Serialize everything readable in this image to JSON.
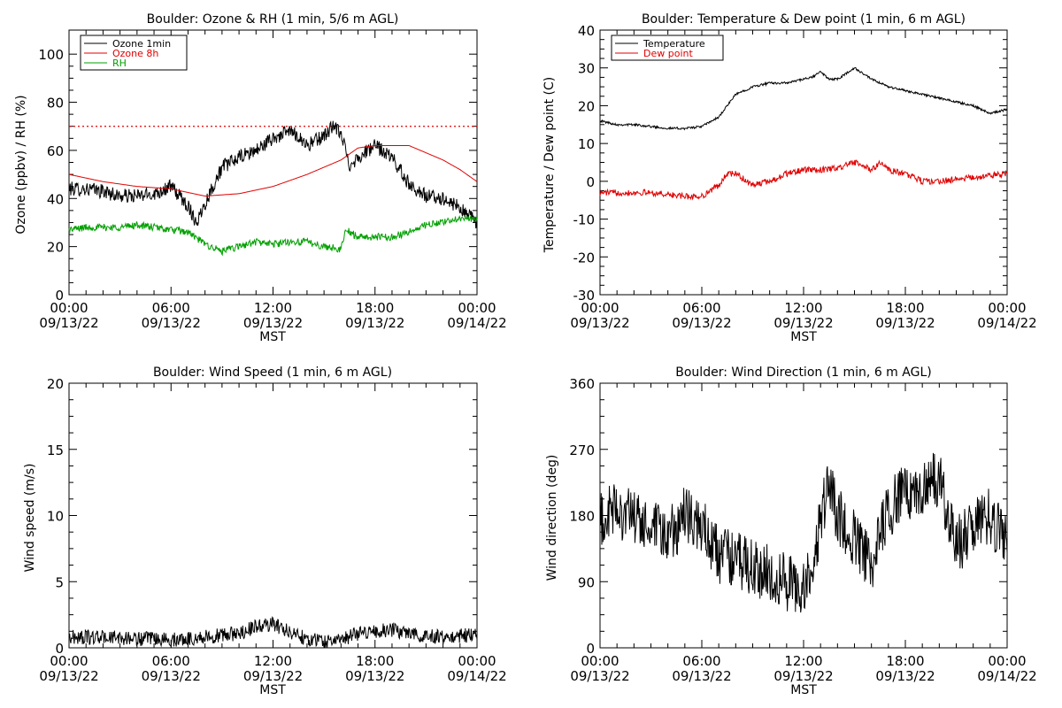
{
  "chart_data": [
    {
      "type": "line",
      "title": "Boulder: Ozone & RH (1 min, 5/6 m AGL)",
      "xlabel": "MST",
      "ylabel": "Ozone (ppbv) / RH (%)",
      "xlim": [
        0,
        24
      ],
      "ylim": [
        0,
        110
      ],
      "yticks": [
        0,
        20,
        40,
        60,
        80,
        100
      ],
      "xticks": [
        {
          "x": 0,
          "time": "00:00",
          "date": "09/13/22"
        },
        {
          "x": 6,
          "time": "06:00",
          "date": "09/13/22"
        },
        {
          "x": 12,
          "time": "12:00",
          "date": "09/13/22"
        },
        {
          "x": 18,
          "time": "18:00",
          "date": "09/13/22"
        },
        {
          "x": 24,
          "time": "00:00",
          "date": "09/14/22"
        }
      ],
      "legend_position": "top-left",
      "reference_lines": [
        {
          "y": 70,
          "color": "#e00000",
          "style": "dotted"
        }
      ],
      "series": [
        {
          "name": "Ozone 1min",
          "color": "#000000",
          "noise": 3,
          "x": [
            0,
            1,
            2,
            3,
            4,
            5,
            6,
            7,
            7.5,
            8,
            9,
            10,
            11,
            12,
            13,
            13.5,
            14,
            15,
            15.5,
            16,
            16.5,
            17,
            18,
            19,
            20,
            21,
            22,
            23,
            24
          ],
          "y": [
            44,
            44,
            43,
            41,
            41,
            42,
            45,
            37,
            30,
            38,
            53,
            57,
            60,
            65,
            68,
            66,
            62,
            66,
            70,
            67,
            54,
            57,
            62,
            57,
            46,
            41,
            40,
            36,
            30
          ]
        },
        {
          "name": "Ozone 8h",
          "color": "#e00000",
          "noise": 0,
          "x": [
            0,
            2,
            4,
            6,
            8,
            10,
            12,
            14,
            16,
            17,
            18,
            19,
            20,
            21,
            22,
            23,
            24
          ],
          "y": [
            50,
            47,
            45,
            44,
            41,
            42,
            45,
            50,
            56,
            61,
            62,
            62,
            62,
            59,
            56,
            52,
            47
          ]
        },
        {
          "name": "RH",
          "color": "#00a000",
          "noise": 1.5,
          "x": [
            0,
            1,
            2,
            3,
            4,
            5,
            6,
            7,
            8,
            9,
            10,
            11,
            12,
            13,
            14,
            15,
            16,
            16.3,
            17,
            18,
            19,
            20,
            21,
            22,
            23,
            24
          ],
          "y": [
            27,
            28,
            28,
            28,
            29,
            28,
            27,
            26,
            21,
            18,
            20,
            22,
            21,
            22,
            22,
            20,
            19,
            27,
            24,
            24,
            24,
            26,
            29,
            30,
            32,
            31
          ]
        }
      ]
    },
    {
      "type": "line",
      "title": "Boulder: Temperature & Dew point (1 min, 6 m AGL)",
      "xlabel": "MST",
      "ylabel": "Temperature / Dew point (C)",
      "xlim": [
        0,
        24
      ],
      "ylim": [
        -30,
        40
      ],
      "yticks": [
        -30,
        -20,
        -10,
        0,
        10,
        20,
        30,
        40
      ],
      "xticks": [
        {
          "x": 0,
          "time": "00:00",
          "date": "09/13/22"
        },
        {
          "x": 6,
          "time": "06:00",
          "date": "09/13/22"
        },
        {
          "x": 12,
          "time": "12:00",
          "date": "09/13/22"
        },
        {
          "x": 18,
          "time": "18:00",
          "date": "09/13/22"
        },
        {
          "x": 24,
          "time": "00:00",
          "date": "09/14/22"
        }
      ],
      "legend_position": "top-left",
      "series": [
        {
          "name": "Temperature",
          "color": "#000000",
          "noise": 0.3,
          "x": [
            0,
            1,
            2,
            3,
            4,
            5,
            6,
            7,
            8,
            9,
            10,
            11,
            12,
            12.5,
            13,
            13.5,
            14,
            15,
            16,
            17,
            18,
            19,
            20,
            21,
            22,
            23,
            24
          ],
          "y": [
            16,
            15,
            15,
            14.5,
            14,
            14,
            14.5,
            17,
            23,
            25,
            26,
            26,
            27,
            27.5,
            29,
            27,
            27,
            30,
            27,
            25,
            24,
            23,
            22,
            21,
            20,
            18,
            19
          ]
        },
        {
          "name": "Dew point",
          "color": "#e00000",
          "noise": 0.8,
          "x": [
            0,
            1,
            2,
            3,
            4,
            5,
            6,
            7,
            7.5,
            8,
            9,
            10,
            11,
            12,
            13,
            14,
            15,
            16,
            16.5,
            17,
            18,
            19,
            20,
            21,
            22,
            23,
            24
          ],
          "y": [
            -3,
            -3,
            -3,
            -3,
            -3.5,
            -4,
            -4,
            -1,
            2,
            2,
            -1,
            0,
            2,
            3,
            3,
            3.5,
            5,
            3,
            5,
            3,
            2,
            0,
            0,
            0.5,
            1,
            1.5,
            2
          ]
        }
      ]
    },
    {
      "type": "line",
      "title": "Boulder: Wind Speed (1 min, 6 m AGL)",
      "xlabel": "MST",
      "ylabel": "Wind speed (m/s)",
      "xlim": [
        0,
        24
      ],
      "ylim": [
        0,
        20
      ],
      "yticks": [
        0,
        5,
        10,
        15,
        20
      ],
      "xticks": [
        {
          "x": 0,
          "time": "00:00",
          "date": "09/13/22"
        },
        {
          "x": 6,
          "time": "06:00",
          "date": "09/13/22"
        },
        {
          "x": 12,
          "time": "12:00",
          "date": "09/13/22"
        },
        {
          "x": 18,
          "time": "18:00",
          "date": "09/13/22"
        },
        {
          "x": 24,
          "time": "00:00",
          "date": "09/14/22"
        }
      ],
      "series": [
        {
          "color": "#000000",
          "noise": 0.55,
          "x": [
            0,
            2,
            4,
            6,
            8,
            10,
            11,
            12,
            13,
            14,
            15,
            16,
            17,
            18,
            19,
            20,
            21,
            22,
            23,
            24
          ],
          "y": [
            0.8,
            0.8,
            0.7,
            0.6,
            0.8,
            1.1,
            1.6,
            1.8,
            1.2,
            0.7,
            0.5,
            0.6,
            1.1,
            1.3,
            1.3,
            1.2,
            0.9,
            0.8,
            0.9,
            1.0
          ]
        }
      ]
    },
    {
      "type": "line",
      "title": "Boulder: Wind Direction (1 min, 6 m AGL)",
      "xlabel": "MST",
      "ylabel": "Wind direction (deg)",
      "xlim": [
        0,
        24
      ],
      "ylim": [
        0,
        360
      ],
      "yticks": [
        0,
        90,
        180,
        270,
        360
      ],
      "xticks": [
        {
          "x": 0,
          "time": "00:00",
          "date": "09/13/22"
        },
        {
          "x": 6,
          "time": "06:00",
          "date": "09/13/22"
        },
        {
          "x": 12,
          "time": "12:00",
          "date": "09/13/22"
        },
        {
          "x": 18,
          "time": "18:00",
          "date": "09/13/22"
        },
        {
          "x": 24,
          "time": "00:00",
          "date": "09/14/22"
        }
      ],
      "series": [
        {
          "color": "#000000",
          "noise": 40,
          "x": [
            0,
            1,
            2,
            3,
            4,
            5,
            6,
            7,
            8,
            9,
            10,
            11,
            12,
            12.5,
            13,
            13.5,
            14,
            15,
            16,
            17,
            18,
            19,
            20,
            21,
            22,
            23,
            24
          ],
          "y": [
            170,
            190,
            175,
            160,
            150,
            180,
            165,
            125,
            120,
            110,
            100,
            90,
            80,
            110,
            170,
            230,
            180,
            150,
            110,
            190,
            210,
            220,
            230,
            140,
            160,
            180,
            140
          ]
        }
      ]
    }
  ]
}
